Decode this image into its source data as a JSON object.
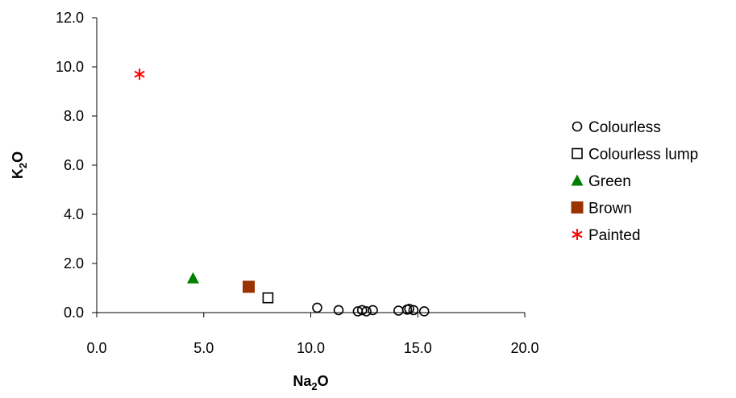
{
  "chart_data": {
    "type": "scatter",
    "xlabel": "Na2O",
    "ylabel": "K2O",
    "xlabel_parts": {
      "main": "Na",
      "sub": "2",
      "tail": "O"
    },
    "ylabel_parts": {
      "main": "K",
      "sub": "2",
      "tail": "O"
    },
    "xlim": [
      0,
      20
    ],
    "ylim": [
      0,
      12
    ],
    "x_ticks": [
      "0.0",
      "5.0",
      "10.0",
      "15.0",
      "20.0"
    ],
    "y_ticks": [
      "0.0",
      "2.0",
      "4.0",
      "6.0",
      "8.0",
      "10.0",
      "12.0"
    ],
    "x_tick_values": [
      0,
      5,
      10,
      15,
      20
    ],
    "y_tick_values": [
      0,
      2,
      4,
      6,
      8,
      10,
      12
    ],
    "grid": false,
    "legend_position": "right",
    "series": [
      {
        "name": "Colourless",
        "marker": "circle-open",
        "color": "#000000",
        "points": [
          {
            "x": 10.3,
            "y": 0.2
          },
          {
            "x": 11.3,
            "y": 0.1
          },
          {
            "x": 12.2,
            "y": 0.05
          },
          {
            "x": 12.4,
            "y": 0.1
          },
          {
            "x": 12.6,
            "y": 0.05
          },
          {
            "x": 12.9,
            "y": 0.1
          },
          {
            "x": 14.1,
            "y": 0.08
          },
          {
            "x": 14.5,
            "y": 0.12
          },
          {
            "x": 14.6,
            "y": 0.15
          },
          {
            "x": 14.8,
            "y": 0.1
          },
          {
            "x": 15.3,
            "y": 0.05
          }
        ]
      },
      {
        "name": "Colourless lump",
        "marker": "square-open",
        "color": "#000000",
        "points": [
          {
            "x": 8.0,
            "y": 0.6
          }
        ]
      },
      {
        "name": "Green",
        "marker": "triangle",
        "color": "#008000",
        "points": [
          {
            "x": 4.5,
            "y": 1.4
          }
        ]
      },
      {
        "name": "Brown",
        "marker": "square",
        "color": "#993300",
        "points": [
          {
            "x": 7.1,
            "y": 1.05
          }
        ]
      },
      {
        "name": "Painted",
        "marker": "asterisk",
        "color": "#ff0000",
        "points": [
          {
            "x": 2.0,
            "y": 9.7
          }
        ]
      }
    ]
  }
}
